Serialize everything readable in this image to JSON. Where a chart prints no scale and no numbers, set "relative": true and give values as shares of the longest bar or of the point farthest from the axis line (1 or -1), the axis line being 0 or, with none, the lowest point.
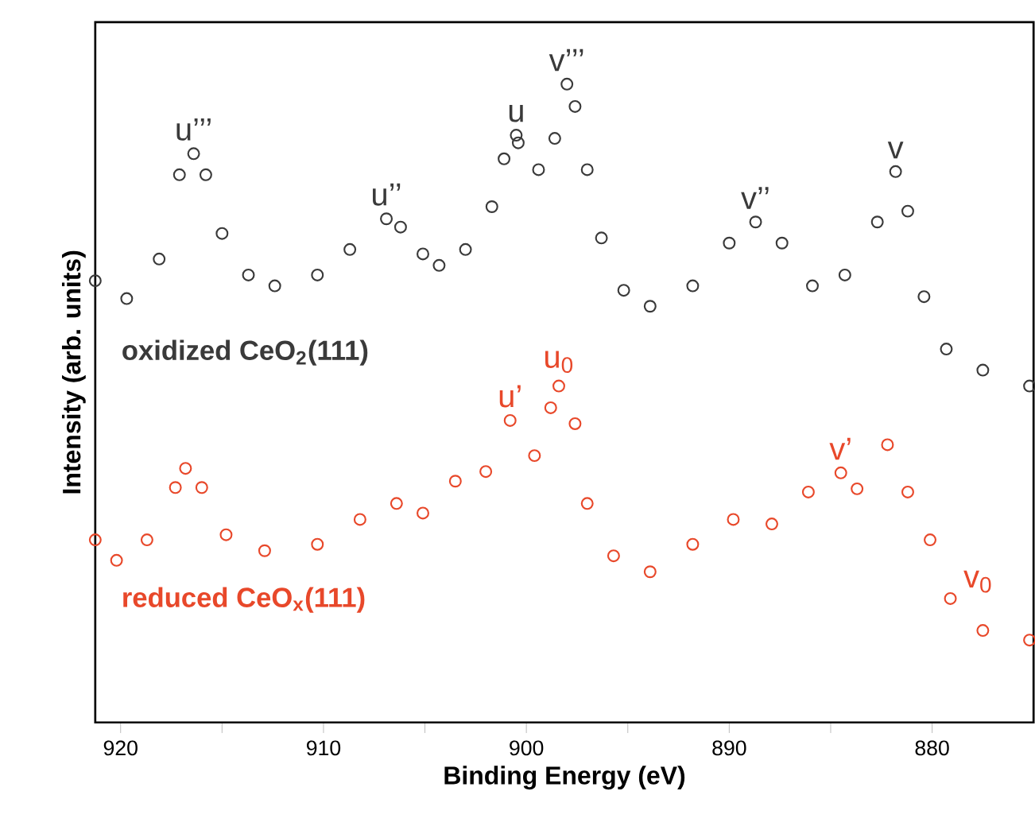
{
  "chart_data": {
    "type": "scatter",
    "xlabel": "Binding Energy (eV)",
    "ylabel": "Intensity (arb. units)",
    "xlim": [
      921.25,
      875
    ],
    "xticks": [
      920,
      {
        "value": 915,
        "label": null
      },
      910,
      {
        "value": 905,
        "label": null
      },
      900,
      {
        "value": 895,
        "label": null
      },
      890,
      {
        "value": 885,
        "label": null
      },
      880
    ],
    "relative": true,
    "marker": "circle",
    "tick_labels": "x",
    "series": [
      {
        "name": "oxidized CeO$_{2}$(111)",
        "color": "#3a3a3a",
        "x": [
          921.25,
          919.7,
          918.1,
          917.1,
          916.4,
          915.8,
          915.0,
          913.7,
          912.4,
          910.3,
          908.7,
          906.9,
          906.2,
          905.1,
          904.3,
          903.0,
          901.7,
          901.1,
          900.5,
          900.4,
          899.4,
          898.6,
          898.0,
          897.6,
          897.0,
          896.3,
          895.2,
          893.9,
          891.8,
          890.0,
          888.7,
          887.4,
          885.9,
          884.3,
          882.7,
          881.8,
          881.2,
          880.4,
          879.3,
          877.5,
          875.2
        ],
        "values": [
          0.692,
          0.664,
          0.726,
          0.858,
          0.891,
          0.858,
          0.766,
          0.701,
          0.684,
          0.701,
          0.741,
          0.789,
          0.776,
          0.734,
          0.716,
          0.741,
          0.808,
          0.883,
          0.92,
          0.908,
          0.866,
          0.915,
          1.0,
          0.965,
          0.866,
          0.759,
          0.677,
          0.652,
          0.684,
          0.751,
          0.784,
          0.751,
          0.684,
          0.701,
          0.784,
          0.863,
          0.801,
          0.667,
          0.585,
          0.552,
          0.527
        ]
      },
      {
        "name": "reduced CeO$_{x}$(111)",
        "color": "#e8482a",
        "x": [
          921.25,
          920.2,
          918.7,
          917.3,
          916.8,
          916.0,
          914.8,
          912.9,
          910.3,
          908.2,
          906.4,
          905.1,
          903.5,
          902.0,
          900.8,
          899.6,
          898.8,
          898.4,
          897.6,
          897.0,
          895.7,
          893.9,
          891.8,
          889.8,
          887.9,
          886.1,
          884.5,
          883.7,
          882.2,
          881.2,
          880.1,
          879.1,
          877.5,
          875.2
        ],
        "values": [
          0.286,
          0.254,
          0.286,
          0.368,
          0.398,
          0.368,
          0.294,
          0.269,
          0.279,
          0.318,
          0.343,
          0.328,
          0.378,
          0.393,
          0.473,
          0.418,
          0.493,
          0.527,
          0.468,
          0.343,
          0.261,
          0.236,
          0.279,
          0.318,
          0.311,
          0.361,
          0.391,
          0.366,
          0.435,
          0.361,
          0.286,
          0.194,
          0.144,
          0.129
        ]
      }
    ],
    "annotations": [
      {
        "text": "u’’’",
        "x": 916.4,
        "y": 0.891
      },
      {
        "text": "u’’",
        "x": 906.9,
        "y": 0.789
      },
      {
        "text": "u",
        "x": 900.5,
        "y": 0.92
      },
      {
        "text": "v’’’",
        "x": 898.0,
        "y": 1.0
      },
      {
        "text": "v’’",
        "x": 888.7,
        "y": 0.784
      },
      {
        "text": "v",
        "x": 881.8,
        "y": 0.863
      },
      {
        "text": "u’",
        "x": 900.8,
        "y": 0.473
      },
      {
        "text": "u$_{0}$",
        "x": 898.4,
        "y": 0.527
      },
      {
        "text": "v’",
        "x": 884.5,
        "y": 0.391
      },
      {
        "text": "v$_{0}$",
        "x": 879.1,
        "y": 0.194
      }
    ]
  }
}
